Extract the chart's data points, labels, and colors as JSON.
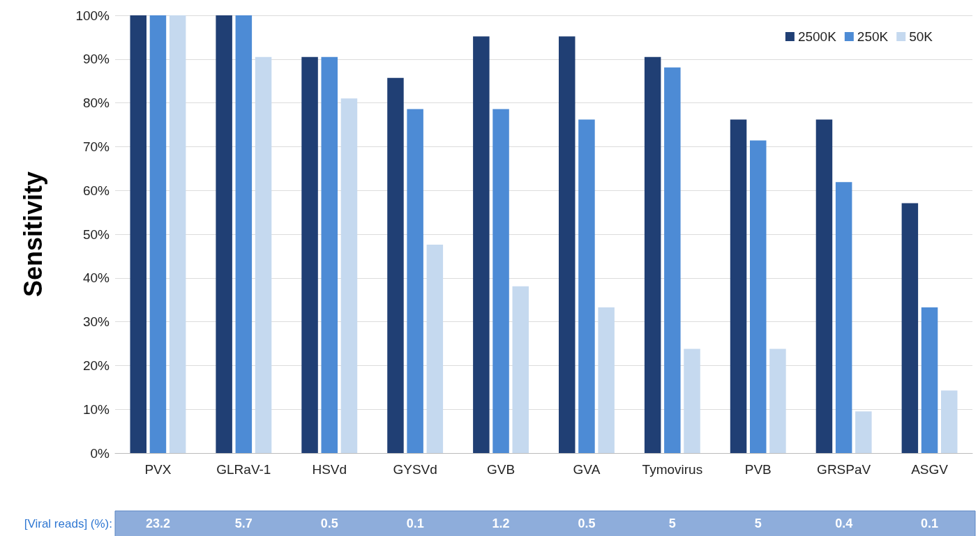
{
  "chart_data": {
    "type": "bar",
    "ylabel": "Sensitivity",
    "categories": [
      "PVX",
      "GLRaV-1",
      "HSVd",
      "GYSVd",
      "GVB",
      "GVA",
      "Tymovirus",
      "PVB",
      "GRSPaV",
      "ASGV"
    ],
    "series": [
      {
        "name": "2500K",
        "color": "#203f74",
        "values": [
          100,
          100,
          90.5,
          85.7,
          95.2,
          95.2,
          90.5,
          76.2,
          76.2,
          57.1
        ]
      },
      {
        "name": "250K",
        "color": "#4d8bd5",
        "values": [
          100,
          100,
          90.5,
          78.6,
          78.6,
          76.2,
          88.1,
          71.4,
          61.9,
          33.3
        ]
      },
      {
        "name": "50K",
        "color": "#c5d9ef",
        "values": [
          100,
          90.5,
          81,
          47.6,
          38.1,
          33.3,
          23.8,
          23.8,
          9.5,
          14.3
        ]
      }
    ],
    "ylim": [
      0,
      100
    ],
    "yticks": [
      {
        "value": 0,
        "label": "0%"
      },
      {
        "value": 10,
        "label": "10%"
      },
      {
        "value": 20,
        "label": "20%"
      },
      {
        "value": 30,
        "label": "30%"
      },
      {
        "value": 40,
        "label": "40%"
      },
      {
        "value": 50,
        "label": "50%"
      },
      {
        "value": 60,
        "label": "60%"
      },
      {
        "value": 70,
        "label": "70%"
      },
      {
        "value": 80,
        "label": "80%"
      },
      {
        "value": 90,
        "label": "90%"
      },
      {
        "value": 100,
        "label": "100%"
      }
    ],
    "grid": "y",
    "legend": "top right",
    "annotations": [
      "[Viral reads] (%):",
      "23.2",
      "5.7",
      "0.5",
      "0.1",
      "1.2",
      "0.5",
      "5",
      "5",
      "0.4",
      "0.1"
    ]
  }
}
